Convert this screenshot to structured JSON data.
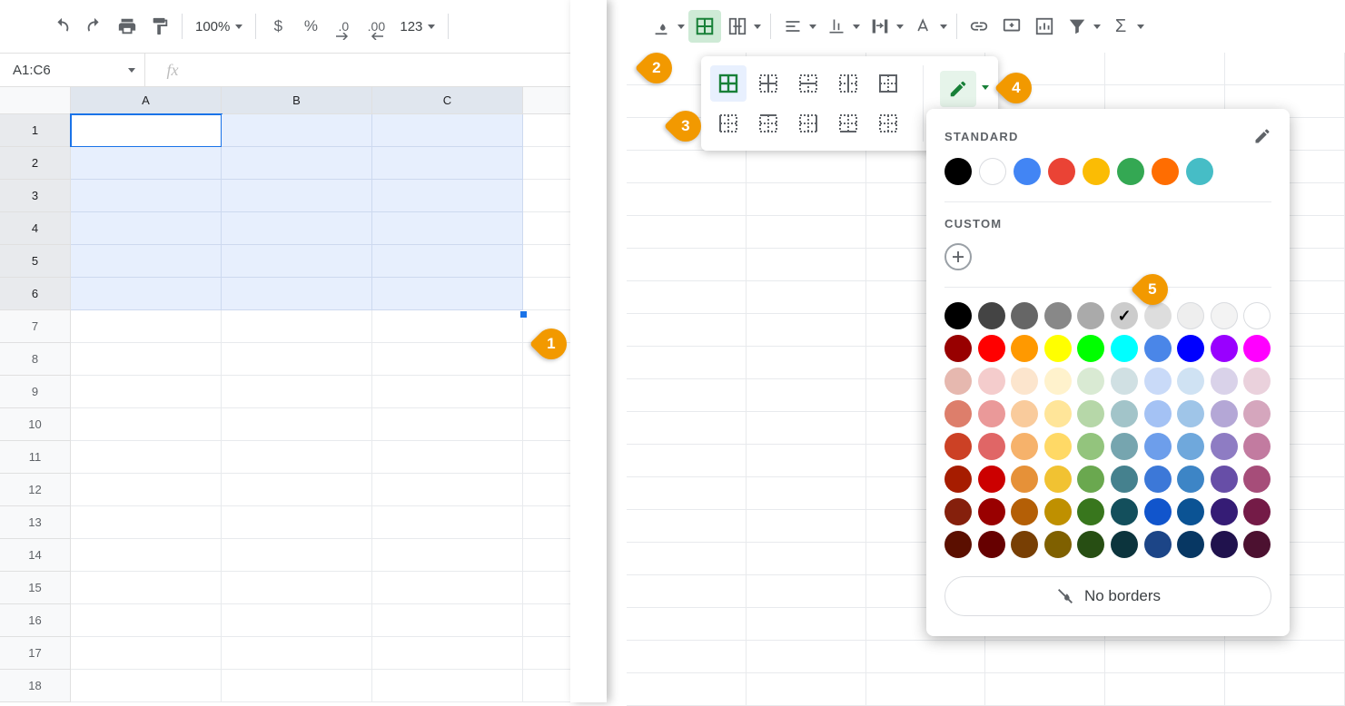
{
  "toolbar": {
    "zoom": "100%",
    "currency_icon": "$",
    "percent_icon": "%",
    "dec_dec": ".0",
    "inc_dec": ".00",
    "format_more": "123"
  },
  "namebox": {
    "value": "A1:C6"
  },
  "fx": {
    "label": "fx"
  },
  "columns": [
    "A",
    "B",
    "C"
  ],
  "rows": [
    "1",
    "2",
    "3",
    "4",
    "5",
    "6",
    "7",
    "8",
    "9",
    "10",
    "11",
    "12",
    "13",
    "14",
    "15",
    "16",
    "17",
    "18"
  ],
  "selected_rows": 6,
  "color_popup": {
    "standard_label": "STANDARD",
    "custom_label": "CUSTOM",
    "no_borders_label": "No borders",
    "standard_colors": [
      "#000000",
      "#ffffff",
      "#4285f4",
      "#ea4335",
      "#fbbc04",
      "#34a853",
      "#ff6d01",
      "#46bdc6"
    ],
    "palette": [
      [
        "#000000",
        "#444444",
        "#666666",
        "#888888",
        "#aaaaaa",
        "#cccccc",
        "#dddddd",
        "#eeeeee",
        "#f3f3f3",
        "#ffffff"
      ],
      [
        "#980000",
        "#ff0000",
        "#ff9900",
        "#ffff00",
        "#00ff00",
        "#00ffff",
        "#4a86e8",
        "#0000ff",
        "#9900ff",
        "#ff00ff"
      ],
      [
        "#e6b8af",
        "#f4cccc",
        "#fce5cd",
        "#fff2cc",
        "#d9ead3",
        "#d0e0e3",
        "#c9daf8",
        "#cfe2f3",
        "#d9d2e9",
        "#ead1dc"
      ],
      [
        "#dd7e6b",
        "#ea9999",
        "#f9cb9c",
        "#ffe599",
        "#b6d7a8",
        "#a2c4c9",
        "#a4c2f4",
        "#9fc5e8",
        "#b4a7d6",
        "#d5a6bd"
      ],
      [
        "#cc4125",
        "#e06666",
        "#f6b26b",
        "#ffd966",
        "#93c47d",
        "#76a5af",
        "#6d9eeb",
        "#6fa8dc",
        "#8e7cc3",
        "#c27ba0"
      ],
      [
        "#a61c00",
        "#cc0000",
        "#e69138",
        "#f1c232",
        "#6aa84f",
        "#45818e",
        "#3c78d8",
        "#3d85c6",
        "#674ea7",
        "#a64d79"
      ],
      [
        "#85200c",
        "#990000",
        "#b45f06",
        "#bf9000",
        "#38761d",
        "#134f5c",
        "#1155cc",
        "#0b5394",
        "#351c75",
        "#741b47"
      ],
      [
        "#5b0f00",
        "#660000",
        "#783f04",
        "#7f6000",
        "#274e13",
        "#0c343d",
        "#1c4587",
        "#073763",
        "#20124d",
        "#4c1130"
      ]
    ],
    "checked_index": [
      0,
      5
    ]
  },
  "callouts": {
    "c1": "1",
    "c2": "2",
    "c3": "3",
    "c4": "4",
    "c5": "5"
  }
}
